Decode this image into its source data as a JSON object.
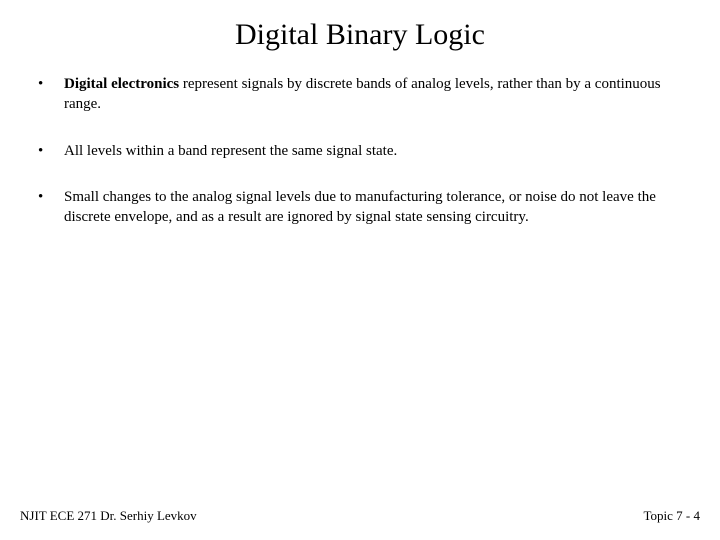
{
  "slide": {
    "title": "Digital Binary Logic",
    "title_fontsize": 30,
    "body_fontsize": 15,
    "background_color": "#ffffff",
    "text_color": "#000000",
    "font_family": "Times New Roman",
    "bullet_glyph": "•",
    "bullets": [
      {
        "runs": [
          {
            "text": "Digital electronics",
            "bold": true
          },
          {
            "text": " represent signals by discrete bands of analog levels, rather than by a continuous range.",
            "bold": false
          }
        ]
      },
      {
        "runs": [
          {
            "text": "All levels within a band represent the same signal state.",
            "bold": false
          }
        ]
      },
      {
        "runs": [
          {
            "text": "Small changes to the analog signal levels due to manufacturing tolerance, or noise do not leave the discrete envelope, and as a result are ignored by signal state sensing circuitry.",
            "bold": false
          }
        ]
      }
    ],
    "footer_left": "NJIT  ECE 271   Dr. Serhiy Levkov",
    "footer_right": "Topic 7 - 4"
  }
}
